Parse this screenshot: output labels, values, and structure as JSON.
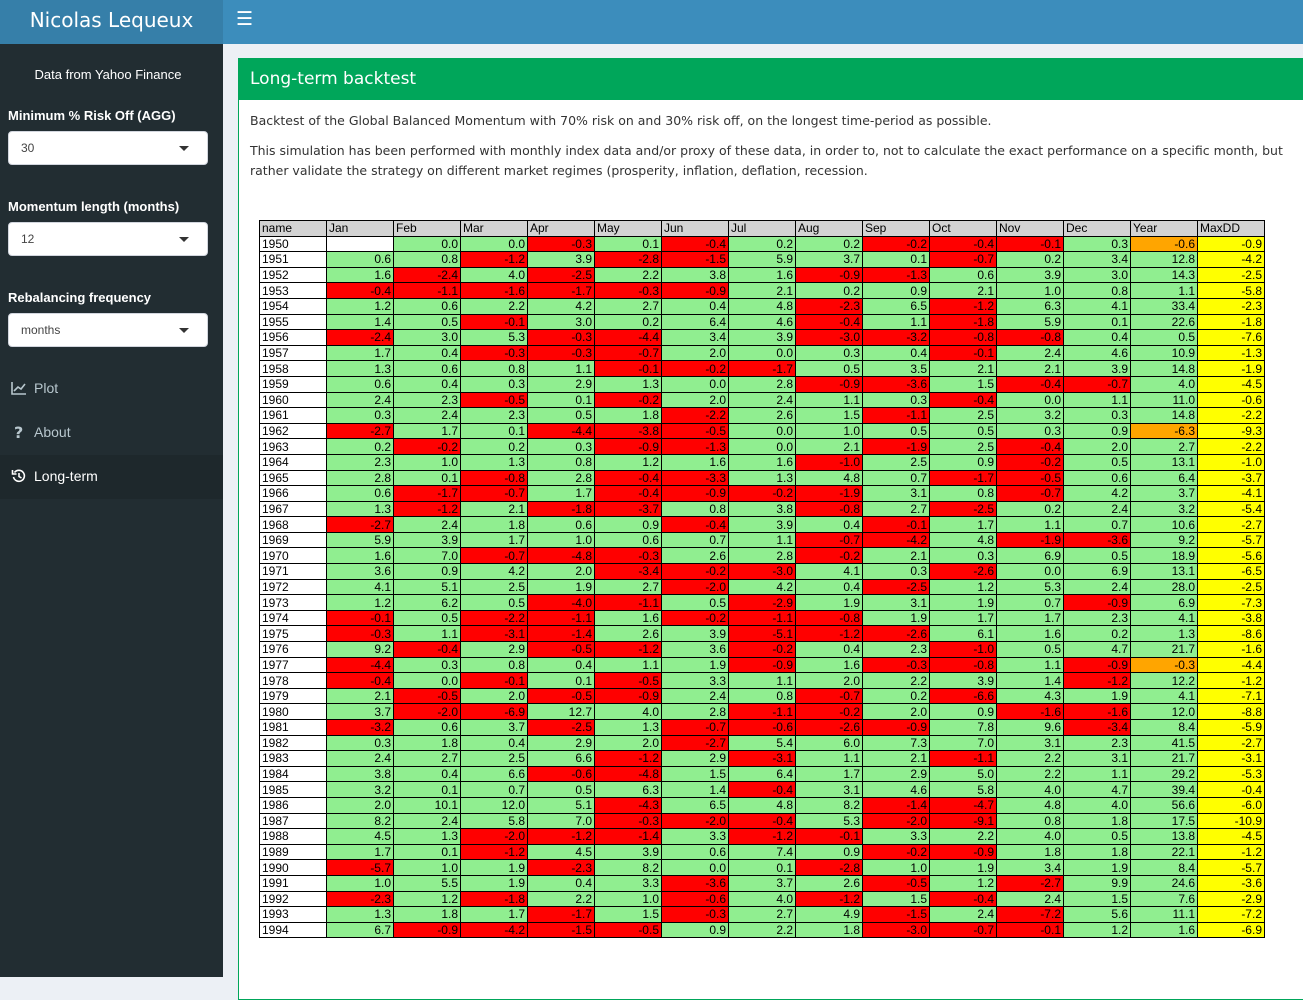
{
  "header": {
    "logo": "Nicolas Lequeux",
    "toggle_icon": "hamburger-icon"
  },
  "sidebar": {
    "data_note": "Data from Yahoo Finance",
    "inputs": [
      {
        "label": "Minimum % Risk Off (AGG)",
        "value": "30"
      },
      {
        "label": "Momentum length (months)",
        "value": "12"
      },
      {
        "label": "Rebalancing frequency",
        "value": "months"
      }
    ],
    "menu": [
      {
        "label": "Plot",
        "icon": "line-chart-icon"
      },
      {
        "label": "About",
        "icon": "question-icon"
      },
      {
        "label": "Long-term",
        "icon": "history-icon",
        "active": true
      }
    ]
  },
  "main": {
    "title": "Long-term backtest",
    "p1": "Backtest of the Global Balanced Momentum with 70% risk on and 30% risk off, on the longest time-period as possible.",
    "p2": "This simulation has been performed with monthly index data and/or proxy of these data, in order to, not to calculate the exact performance on a specific month, but rather validate the strategy on different market regimes (prosperity, inflation, deflation, recession."
  },
  "colors": {
    "green": "#90ee90",
    "red": "#ff0000",
    "orange": "#ffa500",
    "yellow": "#ffff00",
    "header_bg": "#d3d3d3",
    "box_green": "#00a65a"
  },
  "table": {
    "columns": [
      "name",
      "Jan",
      "Feb",
      "Mar",
      "Apr",
      "May",
      "Jun",
      "Jul",
      "Aug",
      "Sep",
      "Oct",
      "Nov",
      "Dec",
      "Year",
      "MaxDD"
    ],
    "rows": [
      [
        "1950",
        "",
        "0.0",
        "0.0",
        "-0.3",
        "0.1",
        "-0.4",
        "0.2",
        "0.2",
        "-0.2",
        "-0.4",
        "-0.1",
        "0.3",
        "-0.6",
        "-0.9"
      ],
      [
        "1951",
        "0.6",
        "0.8",
        "-1.2",
        "3.9",
        "-2.8",
        "-1.5",
        "5.9",
        "3.7",
        "0.1",
        "-0.7",
        "0.2",
        "3.4",
        "12.8",
        "-4.2"
      ],
      [
        "1952",
        "1.6",
        "-2.4",
        "4.0",
        "-2.5",
        "2.2",
        "3.8",
        "1.6",
        "-0.9",
        "-1.3",
        "0.6",
        "3.9",
        "3.0",
        "14.3",
        "-2.5"
      ],
      [
        "1953",
        "-0.4",
        "-1.1",
        "-1.6",
        "-1.7",
        "-0.3",
        "-0.9",
        "2.1",
        "0.2",
        "0.9",
        "2.1",
        "1.0",
        "0.8",
        "1.1",
        "-5.8"
      ],
      [
        "1954",
        "1.2",
        "0.6",
        "2.2",
        "4.2",
        "2.7",
        "0.4",
        "4.8",
        "-2.3",
        "6.5",
        "-1.2",
        "6.3",
        "4.1",
        "33.4",
        "-2.3"
      ],
      [
        "1955",
        "1.4",
        "0.5",
        "-0.1",
        "3.0",
        "0.2",
        "6.4",
        "4.6",
        "-0.4",
        "1.1",
        "-1.8",
        "5.9",
        "0.1",
        "22.6",
        "-1.8"
      ],
      [
        "1956",
        "-2.4",
        "3.0",
        "5.3",
        "-0.3",
        "-4.4",
        "3.4",
        "3.9",
        "-3.0",
        "-3.2",
        "-0.8",
        "-0.8",
        "0.4",
        "0.5",
        "-7.6"
      ],
      [
        "1957",
        "1.7",
        "0.4",
        "-0.3",
        "-0.3",
        "-0.7",
        "2.0",
        "0.0",
        "0.3",
        "0.4",
        "-0.1",
        "2.4",
        "4.6",
        "10.9",
        "-1.3"
      ],
      [
        "1958",
        "1.3",
        "0.6",
        "0.8",
        "1.1",
        "-0.1",
        "-0.2",
        "-1.7",
        "0.5",
        "3.5",
        "2.1",
        "2.1",
        "3.9",
        "14.8",
        "-1.9"
      ],
      [
        "1959",
        "0.6",
        "0.4",
        "0.3",
        "2.9",
        "1.3",
        "0.0",
        "2.8",
        "-0.9",
        "-3.6",
        "1.5",
        "-0.4",
        "-0.7",
        "4.0",
        "-4.5"
      ],
      [
        "1960",
        "2.4",
        "2.3",
        "-0.5",
        "0.1",
        "-0.2",
        "2.0",
        "2.4",
        "1.1",
        "0.3",
        "-0.4",
        "0.0",
        "1.1",
        "11.0",
        "-0.6"
      ],
      [
        "1961",
        "0.3",
        "2.4",
        "2.3",
        "0.5",
        "1.8",
        "-2.2",
        "2.6",
        "1.5",
        "-1.1",
        "2.5",
        "3.2",
        "0.3",
        "14.8",
        "-2.2"
      ],
      [
        "1962",
        "-2.7",
        "1.7",
        "0.1",
        "-4.4",
        "-3.8",
        "-0.5",
        "0.0",
        "1.0",
        "0.5",
        "0.5",
        "0.3",
        "0.9",
        "-6.3",
        "-9.3"
      ],
      [
        "1963",
        "0.2",
        "-0.2",
        "0.2",
        "0.3",
        "-0.9",
        "-1.3",
        "0.0",
        "2.1",
        "-1.9",
        "2.5",
        "-0.4",
        "2.0",
        "2.7",
        "-2.2"
      ],
      [
        "1964",
        "2.3",
        "1.0",
        "1.3",
        "0.8",
        "1.2",
        "1.6",
        "1.6",
        "-1.0",
        "2.5",
        "0.9",
        "-0.2",
        "0.5",
        "13.1",
        "-1.0"
      ],
      [
        "1965",
        "2.8",
        "0.1",
        "-0.8",
        "2.8",
        "-0.4",
        "-3.3",
        "1.3",
        "4.8",
        "0.7",
        "-1.7",
        "-0.5",
        "0.6",
        "6.4",
        "-3.7"
      ],
      [
        "1966",
        "0.6",
        "-1.7",
        "-0.7",
        "1.7",
        "-0.4",
        "-0.9",
        "-0.2",
        "-1.9",
        "3.1",
        "0.8",
        "-0.7",
        "4.2",
        "3.7",
        "-4.1"
      ],
      [
        "1967",
        "1.3",
        "-1.2",
        "2.1",
        "-1.8",
        "-3.7",
        "0.8",
        "3.8",
        "-0.8",
        "2.7",
        "-2.5",
        "0.2",
        "2.4",
        "3.2",
        "-5.4"
      ],
      [
        "1968",
        "-2.7",
        "2.4",
        "1.8",
        "0.6",
        "0.9",
        "-0.4",
        "3.9",
        "0.4",
        "-0.1",
        "1.7",
        "1.1",
        "0.7",
        "10.6",
        "-2.7"
      ],
      [
        "1969",
        "5.9",
        "3.9",
        "1.7",
        "1.0",
        "0.6",
        "0.7",
        "1.1",
        "-0.7",
        "-4.2",
        "4.8",
        "-1.9",
        "-3.6",
        "9.2",
        "-5.7"
      ],
      [
        "1970",
        "1.6",
        "7.0",
        "-0.7",
        "-4.8",
        "-0.3",
        "2.6",
        "2.8",
        "-0.2",
        "2.1",
        "0.3",
        "6.9",
        "0.5",
        "18.9",
        "-5.6"
      ],
      [
        "1971",
        "3.6",
        "0.9",
        "4.2",
        "2.0",
        "-3.4",
        "-0.2",
        "-3.0",
        "4.1",
        "0.3",
        "-2.6",
        "0.0",
        "6.9",
        "13.1",
        "-6.5"
      ],
      [
        "1972",
        "4.1",
        "5.1",
        "2.5",
        "1.9",
        "2.7",
        "-2.0",
        "4.2",
        "0.4",
        "-2.5",
        "1.2",
        "5.3",
        "2.4",
        "28.0",
        "-2.5"
      ],
      [
        "1973",
        "1.2",
        "6.2",
        "0.5",
        "-4.0",
        "-1.1",
        "0.5",
        "-2.9",
        "1.9",
        "3.1",
        "1.9",
        "0.7",
        "-0.9",
        "6.9",
        "-7.3"
      ],
      [
        "1974",
        "-0.1",
        "0.5",
        "-2.2",
        "-1.1",
        "1.6",
        "-0.2",
        "-1.1",
        "-0.8",
        "1.9",
        "1.7",
        "1.7",
        "2.3",
        "4.1",
        "-3.8"
      ],
      [
        "1975",
        "-0.3",
        "1.1",
        "-3.1",
        "-1.4",
        "2.6",
        "3.9",
        "-5.1",
        "-1.2",
        "-2.6",
        "6.1",
        "1.6",
        "0.2",
        "1.3",
        "-8.6"
      ],
      [
        "1976",
        "9.2",
        "-0.4",
        "2.9",
        "-0.5",
        "-1.2",
        "3.6",
        "-0.2",
        "0.4",
        "2.3",
        "-1.0",
        "0.5",
        "4.7",
        "21.7",
        "-1.6"
      ],
      [
        "1977",
        "-4.4",
        "0.3",
        "0.8",
        "0.4",
        "1.1",
        "1.9",
        "-0.9",
        "1.6",
        "-0.3",
        "-0.8",
        "1.1",
        "-0.9",
        "-0.3",
        "-4.4"
      ],
      [
        "1978",
        "-0.4",
        "0.0",
        "-0.1",
        "0.1",
        "-0.5",
        "3.3",
        "1.1",
        "2.0",
        "2.2",
        "3.9",
        "1.4",
        "-1.2",
        "12.2",
        "-1.2"
      ],
      [
        "1979",
        "2.1",
        "-0.5",
        "2.0",
        "-0.5",
        "-0.9",
        "2.4",
        "0.8",
        "-0.7",
        "0.2",
        "-6.6",
        "4.3",
        "1.9",
        "4.1",
        "-7.1"
      ],
      [
        "1980",
        "3.7",
        "-2.0",
        "-6.9",
        "12.7",
        "4.0",
        "2.8",
        "-1.1",
        "-0.2",
        "2.0",
        "0.9",
        "-1.6",
        "-1.6",
        "12.0",
        "-8.8"
      ],
      [
        "1981",
        "-3.2",
        "0.6",
        "3.7",
        "-2.5",
        "1.3",
        "-0.7",
        "-0.6",
        "-2.6",
        "-0.9",
        "7.8",
        "9.6",
        "-3.4",
        "8.4",
        "-5.9"
      ],
      [
        "1982",
        "0.3",
        "1.8",
        "0.4",
        "2.9",
        "2.0",
        "-2.7",
        "5.4",
        "6.0",
        "7.3",
        "7.0",
        "3.1",
        "2.3",
        "41.5",
        "-2.7"
      ],
      [
        "1983",
        "2.4",
        "2.7",
        "2.5",
        "6.6",
        "-1.2",
        "2.9",
        "-3.1",
        "1.1",
        "2.1",
        "-1.1",
        "2.2",
        "3.1",
        "21.7",
        "-3.1"
      ],
      [
        "1984",
        "3.8",
        "0.4",
        "6.6",
        "-0.6",
        "-4.8",
        "1.5",
        "6.4",
        "1.7",
        "2.9",
        "5.0",
        "2.2",
        "1.1",
        "29.2",
        "-5.3"
      ],
      [
        "1985",
        "3.2",
        "0.1",
        "0.7",
        "0.5",
        "6.3",
        "1.4",
        "-0.4",
        "3.1",
        "4.6",
        "5.8",
        "4.0",
        "4.7",
        "39.4",
        "-0.4"
      ],
      [
        "1986",
        "2.0",
        "10.1",
        "12.0",
        "5.1",
        "-4.3",
        "6.5",
        "4.8",
        "8.2",
        "-1.4",
        "-4.7",
        "4.8",
        "4.0",
        "56.6",
        "-6.0"
      ],
      [
        "1987",
        "8.2",
        "2.4",
        "5.8",
        "7.0",
        "-0.3",
        "-2.0",
        "-0.4",
        "5.3",
        "-2.0",
        "-9.1",
        "0.8",
        "1.8",
        "17.5",
        "-10.9"
      ],
      [
        "1988",
        "4.5",
        "1.3",
        "-2.0",
        "-1.2",
        "-1.4",
        "3.3",
        "-1.2",
        "-0.1",
        "3.3",
        "2.2",
        "4.0",
        "0.5",
        "13.8",
        "-4.5"
      ],
      [
        "1989",
        "1.7",
        "0.1",
        "-1.2",
        "4.5",
        "3.9",
        "0.6",
        "7.4",
        "0.9",
        "-0.2",
        "-0.9",
        "1.8",
        "1.8",
        "22.1",
        "-1.2"
      ],
      [
        "1990",
        "-5.7",
        "1.0",
        "1.9",
        "-2.3",
        "8.2",
        "0.0",
        "0.1",
        "-2.8",
        "1.0",
        "1.9",
        "3.4",
        "1.9",
        "8.4",
        "-5.7"
      ],
      [
        "1991",
        "1.0",
        "5.5",
        "1.9",
        "0.4",
        "3.3",
        "-3.6",
        "3.7",
        "2.6",
        "-0.5",
        "1.2",
        "-2.7",
        "9.9",
        "24.6",
        "-3.6"
      ],
      [
        "1992",
        "-2.3",
        "1.2",
        "-1.8",
        "2.2",
        "1.0",
        "-0.6",
        "4.0",
        "-1.2",
        "1.5",
        "-0.4",
        "2.4",
        "1.5",
        "7.6",
        "-2.9"
      ],
      [
        "1993",
        "1.3",
        "1.8",
        "1.7",
        "-1.7",
        "1.5",
        "-0.3",
        "2.7",
        "4.9",
        "-1.5",
        "2.4",
        "-7.2",
        "5.6",
        "11.1",
        "-7.2"
      ],
      [
        "1994",
        "6.7",
        "-0.9",
        "-4.2",
        "-1.5",
        "-0.5",
        "0.9",
        "2.2",
        "1.8",
        "-3.0",
        "-0.7",
        "-0.1",
        "1.2",
        "1.6",
        "-6.9"
      ]
    ]
  }
}
